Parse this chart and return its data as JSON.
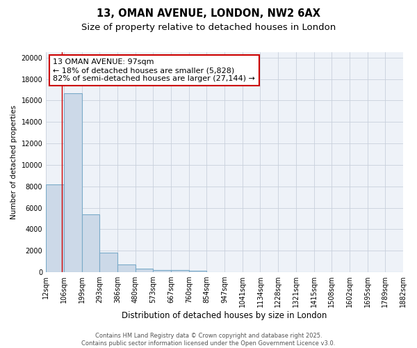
{
  "title1": "13, OMAN AVENUE, LONDON, NW2 6AX",
  "title2": "Size of property relative to detached houses in London",
  "xlabel": "Distribution of detached houses by size in London",
  "ylabel": "Number of detached properties",
  "categories": [
    "12sqm",
    "106sqm",
    "199sqm",
    "293sqm",
    "386sqm",
    "480sqm",
    "573sqm",
    "667sqm",
    "760sqm",
    "854sqm",
    "947sqm",
    "1041sqm",
    "1134sqm",
    "1228sqm",
    "1321sqm",
    "1415sqm",
    "1508sqm",
    "1602sqm",
    "1695sqm",
    "1789sqm",
    "1882sqm"
  ],
  "bar_values": [
    8200,
    16700,
    5400,
    1850,
    750,
    330,
    230,
    180,
    130,
    0,
    0,
    0,
    0,
    0,
    0,
    0,
    0,
    0,
    0,
    0
  ],
  "bar_color": "#ccd9e8",
  "bar_edge_color": "#7aaac8",
  "bar_edge_width": 0.8,
  "grid_color": "#c8d0dc",
  "background_color": "#eef2f8",
  "annotation_text": "13 OMAN AVENUE: 97sqm\n← 18% of detached houses are smaller (5,828)\n82% of semi-detached houses are larger (27,144) →",
  "annotation_box_color": "#ffffff",
  "annotation_border_color": "#cc0000",
  "ylim": [
    0,
    20500
  ],
  "yticks": [
    0,
    2000,
    4000,
    6000,
    8000,
    10000,
    12000,
    14000,
    16000,
    18000,
    20000
  ],
  "footer1": "Contains HM Land Registry data © Crown copyright and database right 2025.",
  "footer2": "Contains public sector information licensed under the Open Government Licence v3.0.",
  "title1_fontsize": 10.5,
  "title2_fontsize": 9.5,
  "tick_fontsize": 7,
  "ylabel_fontsize": 7.5,
  "xlabel_fontsize": 8.5,
  "annot_fontsize": 8,
  "footer_fontsize": 6
}
